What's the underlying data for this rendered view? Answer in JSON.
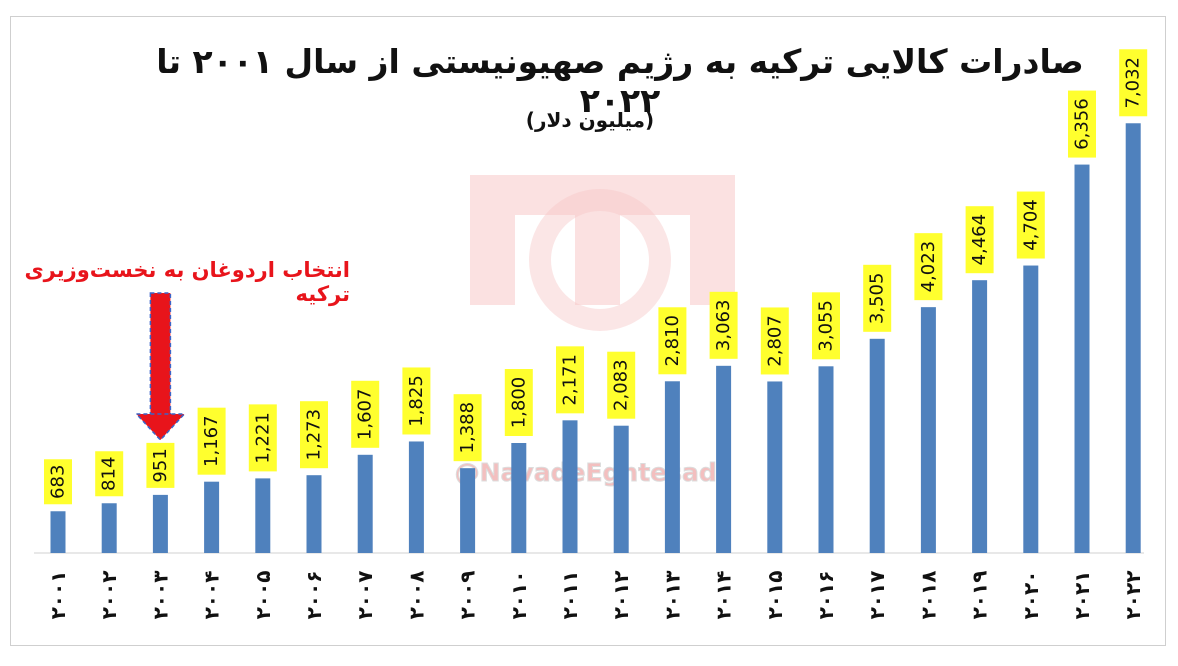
{
  "chart_data": {
    "type": "bar",
    "title": "صادرات کالایی ترکیه به رژیم صهیونیستی از سال ۲۰۰۱ تا ۲۰۲۲",
    "subtitle": "(میلیون دلار)",
    "categories": [
      "۲۰۰۱",
      "۲۰۰۲",
      "۲۰۰۳",
      "۲۰۰۴",
      "۲۰۰۵",
      "۲۰۰۶",
      "۲۰۰۷",
      "۲۰۰۸",
      "۲۰۰۹",
      "۲۰۱۰",
      "۲۰۱۱",
      "۲۰۱۲",
      "۲۰۱۳",
      "۲۰۱۴",
      "۲۰۱۵",
      "۲۰۱۶",
      "۲۰۱۷",
      "۲۰۱۸",
      "۲۰۱۹",
      "۲۰۲۰",
      "۲۰۲۱",
      "۲۰۲۲"
    ],
    "values": [
      683,
      814,
      951,
      1167,
      1221,
      1273,
      1607,
      1825,
      1388,
      1800,
      2171,
      2083,
      2810,
      3063,
      2807,
      3055,
      3505,
      4023,
      4464,
      4704,
      6356,
      7032
    ],
    "value_labels": [
      "683",
      "814",
      "951",
      "1,167",
      "1,221",
      "1,273",
      "1,607",
      "1,825",
      "1,388",
      "1,800",
      "2,171",
      "2,083",
      "2,810",
      "3,063",
      "2,807",
      "3,055",
      "3,505",
      "4,023",
      "4,464",
      "4,704",
      "6,356",
      "7,032"
    ],
    "ylim": [
      0,
      7200
    ],
    "grid": false,
    "legend": "none",
    "bar_color": "#4f81bd",
    "label_bg_color": "#ffff2e",
    "annotation": {
      "text": "انتخاب اردوغان به نخست‌وزیری ترکیه",
      "target_category": "۲۰۰۳",
      "color": "#e8141b"
    }
  },
  "watermark": {
    "handle": "@NavadeEghtesadi",
    "color": "#f2b9b9"
  }
}
